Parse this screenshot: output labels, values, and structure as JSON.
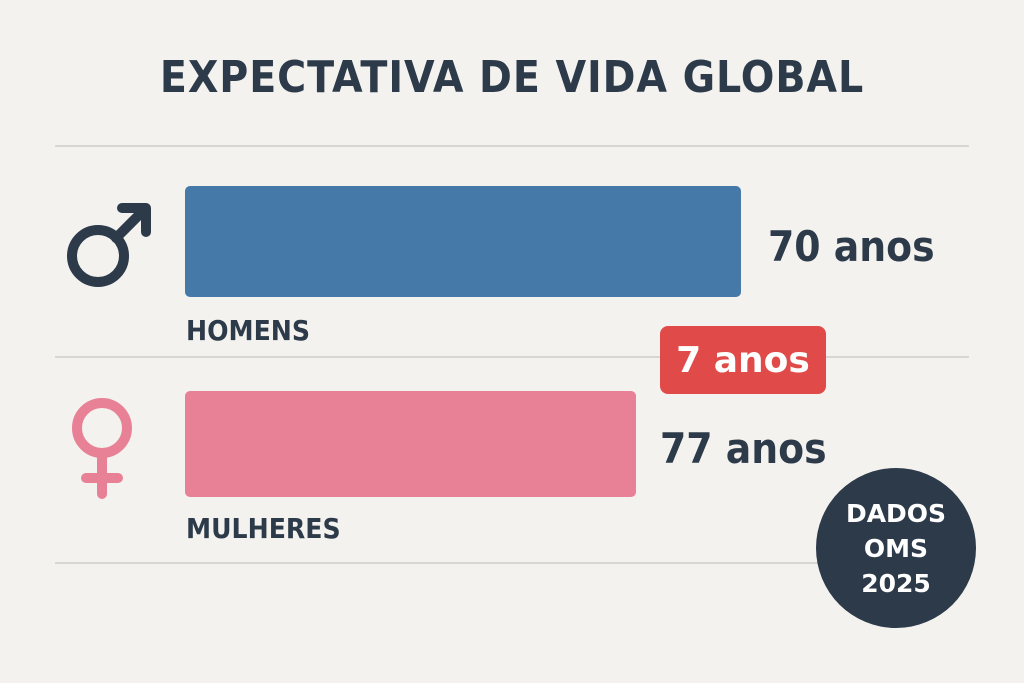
{
  "chart_data": {
    "type": "bar",
    "title": "EXPECTATIVA DE VIDA GLOBAL",
    "categories": [
      "HOMENS",
      "MULHERES"
    ],
    "values": [
      70,
      77
    ],
    "value_labels": [
      "70 anos",
      "77 anos"
    ],
    "unit": "anos",
    "difference_label": "7 anos",
    "colors": {
      "HOMENS": "#4479a8",
      "MULHERES": "#e88196",
      "difference": "#e04b4a",
      "text": "#2c3a4a"
    },
    "icons": [
      "male-symbol-icon",
      "female-symbol-icon"
    ],
    "source_badge": [
      "DADOS",
      "OMS",
      "2025"
    ]
  }
}
